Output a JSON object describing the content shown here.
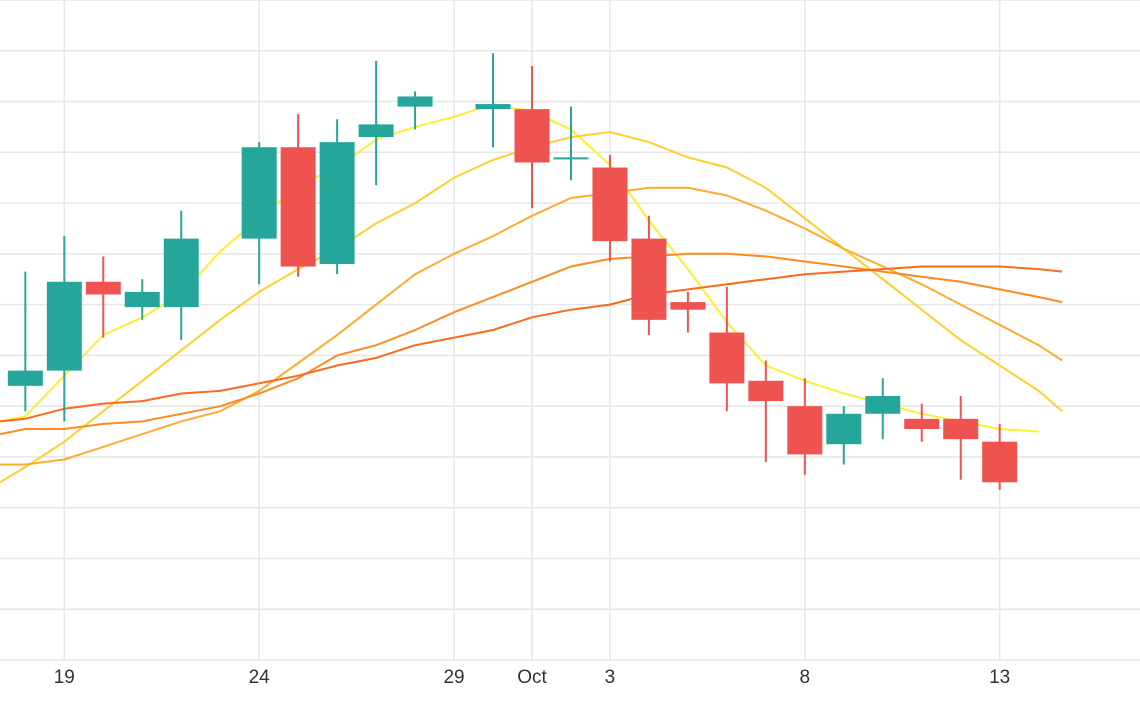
{
  "chart_data": {
    "type": "candlestick",
    "title": "",
    "xlabel": "",
    "ylabel": "",
    "grid": true,
    "x_ticks": [
      {
        "day": 19,
        "label": "19"
      },
      {
        "day": 24,
        "label": "24"
      },
      {
        "day": 29,
        "label": "29"
      },
      {
        "day": 31,
        "label": "Oct"
      },
      {
        "day": 33,
        "label": "3"
      },
      {
        "day": 38,
        "label": "8"
      },
      {
        "day": 43,
        "label": "13"
      }
    ],
    "xlim": [
      17.35,
      46.6
    ],
    "ylim": [
      0,
      13
    ],
    "colors": {
      "up": "#26a69a",
      "down": "#ef5350",
      "grid": "#e6e6e6"
    },
    "candles": [
      {
        "day": 18,
        "open": 5.4,
        "high": 7.65,
        "low": 4.9,
        "close": 5.7
      },
      {
        "day": 19,
        "open": 5.7,
        "high": 8.35,
        "low": 4.7,
        "close": 7.45
      },
      {
        "day": 20,
        "open": 7.45,
        "high": 7.95,
        "low": 6.35,
        "close": 7.2
      },
      {
        "day": 21,
        "open": 6.95,
        "high": 7.5,
        "low": 6.7,
        "close": 7.25
      },
      {
        "day": 22,
        "open": 6.95,
        "high": 8.85,
        "low": 6.3,
        "close": 8.3
      },
      {
        "day": 24,
        "open": 8.3,
        "high": 10.2,
        "low": 7.4,
        "close": 10.1
      },
      {
        "day": 25,
        "open": 10.1,
        "high": 10.75,
        "low": 7.55,
        "close": 7.75
      },
      {
        "day": 26,
        "open": 7.8,
        "high": 10.65,
        "low": 7.6,
        "close": 10.2
      },
      {
        "day": 27,
        "open": 10.3,
        "high": 11.8,
        "low": 9.35,
        "close": 10.55
      },
      {
        "day": 28,
        "open": 10.9,
        "high": 11.2,
        "low": 10.45,
        "close": 11.1
      },
      {
        "day": 30,
        "open": 10.85,
        "high": 11.95,
        "low": 10.1,
        "close": 10.95
      },
      {
        "day": 31,
        "open": 10.85,
        "high": 11.7,
        "low": 8.9,
        "close": 9.8
      },
      {
        "day": 32,
        "open": 9.9,
        "high": 10.9,
        "low": 9.45,
        "close": 9.9
      },
      {
        "day": 33,
        "open": 9.7,
        "high": 9.95,
        "low": 7.85,
        "close": 8.25
      },
      {
        "day": 34,
        "open": 8.3,
        "high": 8.75,
        "low": 6.4,
        "close": 6.7
      },
      {
        "day": 35,
        "open": 7.05,
        "high": 7.25,
        "low": 6.45,
        "close": 6.9
      },
      {
        "day": 36,
        "open": 6.45,
        "high": 7.35,
        "low": 4.9,
        "close": 5.45
      },
      {
        "day": 37,
        "open": 5.5,
        "high": 5.9,
        "low": 3.9,
        "close": 5.1
      },
      {
        "day": 38,
        "open": 5.0,
        "high": 5.55,
        "low": 3.65,
        "close": 4.05
      },
      {
        "day": 39,
        "open": 4.25,
        "high": 5.0,
        "low": 3.85,
        "close": 4.85
      },
      {
        "day": 40,
        "open": 4.85,
        "high": 5.55,
        "low": 4.35,
        "close": 5.2
      },
      {
        "day": 41,
        "open": 4.75,
        "high": 5.05,
        "low": 4.3,
        "close": 4.55
      },
      {
        "day": 42,
        "open": 4.75,
        "high": 5.2,
        "low": 3.55,
        "close": 4.35
      },
      {
        "day": 43,
        "open": 4.3,
        "high": 4.65,
        "low": 3.35,
        "close": 3.5
      }
    ],
    "series": [
      {
        "type": "line",
        "color": "#ffee33",
        "points": [
          [
            17.35,
            4.7
          ],
          [
            18,
            4.8
          ],
          [
            19,
            5.6
          ],
          [
            20,
            6.4
          ],
          [
            21,
            6.75
          ],
          [
            22,
            7.2
          ],
          [
            23,
            8.05
          ],
          [
            24,
            8.7
          ],
          [
            25,
            9.35
          ],
          [
            26,
            9.7
          ],
          [
            27,
            10.25
          ],
          [
            28,
            10.5
          ],
          [
            29,
            10.7
          ],
          [
            30,
            10.95
          ],
          [
            31,
            10.8
          ],
          [
            32,
            10.45
          ],
          [
            33,
            9.75
          ],
          [
            34,
            8.65
          ],
          [
            35,
            7.7
          ],
          [
            36,
            6.65
          ],
          [
            37,
            5.8
          ],
          [
            38,
            5.5
          ],
          [
            39,
            5.25
          ],
          [
            40,
            5.05
          ],
          [
            41,
            4.85
          ],
          [
            42,
            4.7
          ],
          [
            43,
            4.55
          ],
          [
            44,
            4.5
          ]
        ]
      },
      {
        "type": "line",
        "color": "#ffcf2e",
        "points": [
          [
            17.35,
            3.5
          ],
          [
            18,
            3.8
          ],
          [
            19,
            4.3
          ],
          [
            20,
            4.9
          ],
          [
            21,
            5.5
          ],
          [
            22,
            6.1
          ],
          [
            23,
            6.7
          ],
          [
            24,
            7.25
          ],
          [
            25,
            7.7
          ],
          [
            26,
            8.1
          ],
          [
            27,
            8.6
          ],
          [
            28,
            9.0
          ],
          [
            29,
            9.5
          ],
          [
            30,
            9.85
          ],
          [
            31,
            10.1
          ],
          [
            32,
            10.3
          ],
          [
            33,
            10.4
          ],
          [
            34,
            10.2
          ],
          [
            35,
            9.9
          ],
          [
            36,
            9.7
          ],
          [
            37,
            9.3
          ],
          [
            38,
            8.7
          ],
          [
            39,
            8.1
          ],
          [
            40,
            7.5
          ],
          [
            41,
            6.9
          ],
          [
            42,
            6.3
          ],
          [
            43,
            5.8
          ],
          [
            44,
            5.3
          ],
          [
            44.6,
            4.9
          ]
        ]
      },
      {
        "type": "line",
        "color": "#ffab30",
        "points": [
          [
            17.35,
            3.85
          ],
          [
            18,
            3.85
          ],
          [
            19,
            3.95
          ],
          [
            20,
            4.2
          ],
          [
            21,
            4.45
          ],
          [
            22,
            4.7
          ],
          [
            23,
            4.9
          ],
          [
            24,
            5.3
          ],
          [
            25,
            5.85
          ],
          [
            26,
            6.4
          ],
          [
            27,
            7.0
          ],
          [
            28,
            7.6
          ],
          [
            29,
            8.0
          ],
          [
            30,
            8.35
          ],
          [
            31,
            8.75
          ],
          [
            32,
            9.1
          ],
          [
            33,
            9.2
          ],
          [
            34,
            9.3
          ],
          [
            35,
            9.3
          ],
          [
            36,
            9.15
          ],
          [
            37,
            8.85
          ],
          [
            38,
            8.5
          ],
          [
            39,
            8.1
          ],
          [
            40,
            7.75
          ],
          [
            41,
            7.4
          ],
          [
            42,
            7.0
          ],
          [
            43,
            6.6
          ],
          [
            44,
            6.2
          ],
          [
            44.6,
            5.9
          ]
        ]
      },
      {
        "type": "line",
        "color": "#ff8a22",
        "points": [
          [
            17.35,
            4.45
          ],
          [
            18,
            4.55
          ],
          [
            19,
            4.55
          ],
          [
            20,
            4.65
          ],
          [
            21,
            4.7
          ],
          [
            22,
            4.85
          ],
          [
            23,
            5.0
          ],
          [
            24,
            5.25
          ],
          [
            25,
            5.55
          ],
          [
            26,
            6.0
          ],
          [
            27,
            6.2
          ],
          [
            28,
            6.5
          ],
          [
            29,
            6.85
          ],
          [
            30,
            7.15
          ],
          [
            31,
            7.45
          ],
          [
            32,
            7.75
          ],
          [
            33,
            7.9
          ],
          [
            34,
            7.95
          ],
          [
            35,
            8.0
          ],
          [
            36,
            8.0
          ],
          [
            37,
            7.95
          ],
          [
            38,
            7.85
          ],
          [
            39,
            7.75
          ],
          [
            40,
            7.65
          ],
          [
            41,
            7.55
          ],
          [
            42,
            7.45
          ],
          [
            43,
            7.3
          ],
          [
            44,
            7.15
          ],
          [
            44.6,
            7.05
          ]
        ]
      },
      {
        "type": "line",
        "color": "#ff6a1a",
        "points": [
          [
            17.35,
            4.7
          ],
          [
            18,
            4.75
          ],
          [
            19,
            4.95
          ],
          [
            20,
            5.05
          ],
          [
            21,
            5.1
          ],
          [
            22,
            5.25
          ],
          [
            23,
            5.3
          ],
          [
            24,
            5.45
          ],
          [
            25,
            5.6
          ],
          [
            26,
            5.8
          ],
          [
            27,
            5.95
          ],
          [
            28,
            6.2
          ],
          [
            29,
            6.35
          ],
          [
            30,
            6.5
          ],
          [
            31,
            6.75
          ],
          [
            32,
            6.9
          ],
          [
            33,
            7.0
          ],
          [
            34,
            7.2
          ],
          [
            35,
            7.3
          ],
          [
            36,
            7.4
          ],
          [
            37,
            7.5
          ],
          [
            38,
            7.6
          ],
          [
            39,
            7.65
          ],
          [
            40,
            7.7
          ],
          [
            41,
            7.75
          ],
          [
            42,
            7.75
          ],
          [
            43,
            7.75
          ],
          [
            44,
            7.7
          ],
          [
            44.6,
            7.65
          ]
        ]
      }
    ]
  }
}
